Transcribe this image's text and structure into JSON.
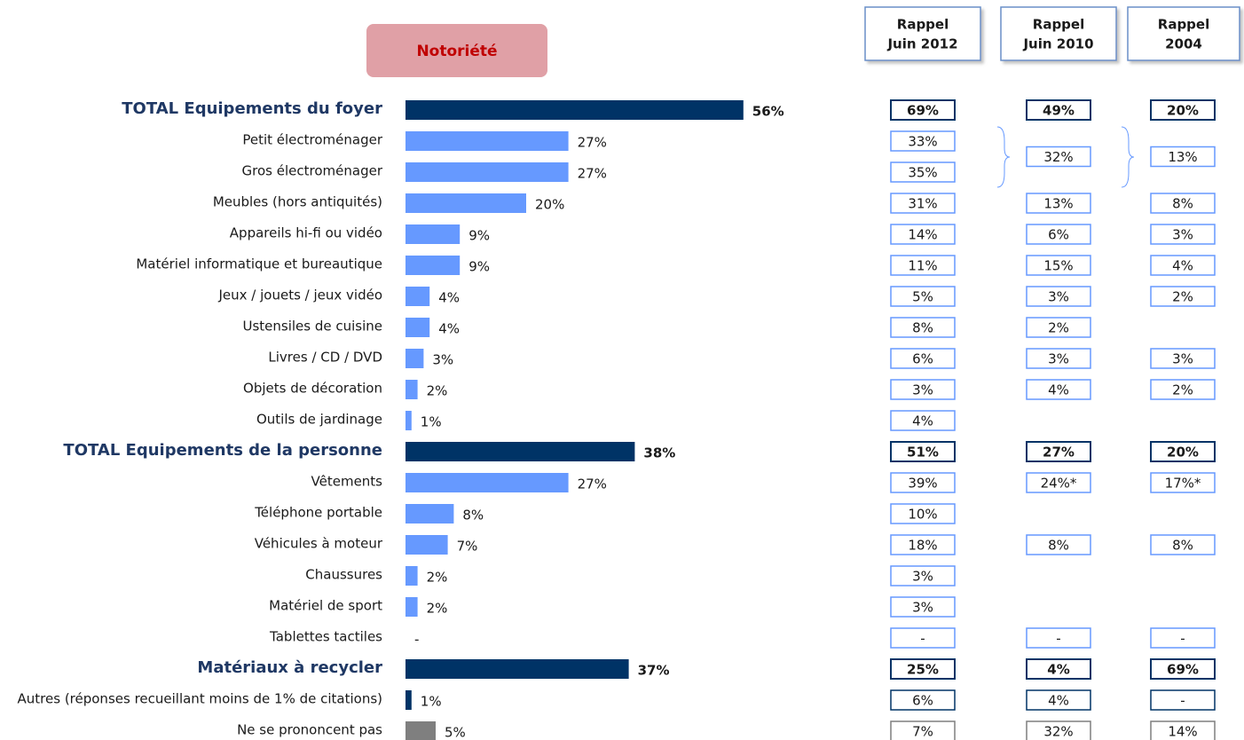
{
  "title": "Notoriété",
  "chart_data": {
    "type": "hbar",
    "categories": [
      "TOTAL Equipements du foyer",
      "Petit électroménager",
      "Gros électroménager",
      "Meubles (hors antiquités)",
      "Appareils hi-fi ou vidéo",
      "Matériel informatique et bureautique",
      "Jeux / jouets / jeux vidéo",
      "Ustensiles de cuisine",
      "Livres / CD / DVD",
      "Objets de décoration",
      "Outils de jardinage",
      "TOTAL Equipements de la personne",
      "Vêtements",
      "Téléphone portable",
      "Véhicules à moteur",
      "Chaussures",
      "Matériel de sport",
      "Tablettes tactiles",
      "Matériaux à recycler",
      "Autres (réponses recueillant moins de 1% de citations)",
      "Ne se prononcent pas"
    ],
    "values": [
      56,
      27,
      27,
      20,
      9,
      9,
      4,
      4,
      3,
      2,
      1,
      38,
      27,
      8,
      7,
      2,
      2,
      null,
      37,
      1,
      5
    ],
    "value_labels": [
      "56%",
      "27%",
      "27%",
      "20%",
      "9%",
      "9%",
      "4%",
      "4%",
      "3%",
      "2%",
      "1%",
      "38%",
      "27%",
      "8%",
      "7%",
      "2%",
      "2%",
      "-",
      "37%",
      "1%",
      "5%"
    ],
    "colors": [
      "#003366",
      "#6699ff",
      "#6699ff",
      "#6699ff",
      "#6699ff",
      "#6699ff",
      "#6699ff",
      "#6699ff",
      "#6699ff",
      "#6699ff",
      "#6699ff",
      "#003366",
      "#6699ff",
      "#6699ff",
      "#6699ff",
      "#6699ff",
      "#6699ff",
      "#6699ff",
      "#003366",
      "#003366",
      "#7f7f7f"
    ],
    "bold": [
      true,
      false,
      false,
      false,
      false,
      false,
      false,
      false,
      false,
      false,
      false,
      true,
      false,
      false,
      false,
      false,
      false,
      false,
      true,
      false,
      false
    ]
  },
  "table": {
    "headers": [
      [
        "Rappel",
        "Juin 2012"
      ],
      [
        "Rappel",
        "Juin 2010"
      ],
      [
        "Rappel",
        "2004"
      ]
    ],
    "rows": [
      [
        "69%",
        "49%",
        "20%"
      ],
      [
        "33%",
        "32%",
        "13%"
      ],
      [
        "35%",
        null,
        null
      ],
      [
        "31%",
        "13%",
        "8%"
      ],
      [
        "14%",
        "6%",
        "3%"
      ],
      [
        "11%",
        "15%",
        "4%"
      ],
      [
        "5%",
        "3%",
        "2%"
      ],
      [
        "8%",
        "2%",
        null
      ],
      [
        "6%",
        "3%",
        "3%"
      ],
      [
        "3%",
        "4%",
        "2%"
      ],
      [
        "4%",
        null,
        null
      ],
      [
        "51%",
        "27%",
        "20%"
      ],
      [
        "39%",
        "24%*",
        "17%*"
      ],
      [
        "10%",
        null,
        null
      ],
      [
        "18%",
        "8%",
        "8%"
      ],
      [
        "3%",
        null,
        null
      ],
      [
        "3%",
        null,
        null
      ],
      [
        "-",
        "-",
        "-"
      ],
      [
        "25%",
        "4%",
        "69%"
      ],
      [
        "6%",
        "4%",
        "-"
      ],
      [
        "7%",
        "32%",
        "14%"
      ]
    ]
  }
}
